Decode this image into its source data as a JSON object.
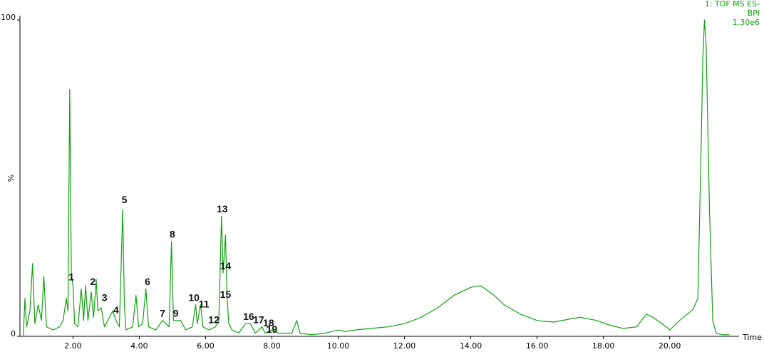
{
  "chart_data": {
    "type": "line",
    "info": [
      "1: TOF MS ES-",
      "BPI",
      "1.30e6"
    ],
    "x_label": "Time",
    "y_label": "%",
    "color": "#12a012",
    "xlim": [
      0.4,
      22.05
    ],
    "ylim": [
      0,
      100
    ],
    "xticks": [
      {
        "value": 2,
        "label": "2.00"
      },
      {
        "value": 4,
        "label": "4.00"
      },
      {
        "value": 6,
        "label": "6.00"
      },
      {
        "value": 8,
        "label": "8.00"
      },
      {
        "value": 10,
        "label": "10.00"
      },
      {
        "value": 12,
        "label": "12.00"
      },
      {
        "value": 14,
        "label": "14.00"
      },
      {
        "value": 16,
        "label": "16.00"
      },
      {
        "value": 18,
        "label": "18.00"
      },
      {
        "value": 20,
        "label": "20.00"
      }
    ],
    "yticks": [
      0,
      100
    ],
    "x": [
      0.5,
      0.55,
      0.6,
      0.7,
      0.78,
      0.85,
      0.95,
      1.05,
      1.12,
      1.2,
      1.4,
      1.6,
      1.7,
      1.8,
      1.85,
      1.9,
      1.95,
      2.0,
      2.05,
      2.15,
      2.25,
      2.32,
      2.38,
      2.45,
      2.55,
      2.62,
      2.7,
      2.75,
      2.85,
      2.95,
      3.1,
      3.2,
      3.3,
      3.4,
      3.5,
      3.55,
      3.6,
      3.8,
      3.9,
      3.98,
      4.1,
      4.2,
      4.28,
      4.5,
      4.7,
      4.8,
      4.9,
      4.97,
      5.03,
      5.1,
      5.25,
      5.4,
      5.6,
      5.7,
      5.75,
      5.85,
      5.92,
      6.1,
      6.3,
      6.4,
      6.48,
      6.53,
      6.6,
      6.65,
      6.7,
      6.8,
      7.0,
      7.2,
      7.35,
      7.5,
      7.7,
      7.8,
      8.0,
      8.2,
      8.6,
      8.75,
      8.85,
      9.2,
      9.6,
      10.0,
      10.2,
      10.5,
      11.0,
      11.5,
      12.0,
      12.5,
      13.0,
      13.5,
      14.0,
      14.3,
      14.7,
      15.0,
      15.5,
      16.0,
      16.5,
      17.0,
      17.3,
      17.8,
      18.2,
      18.6,
      19.0,
      19.3,
      19.5,
      19.9,
      20.0,
      20.3,
      20.7,
      20.85,
      20.95,
      21.0,
      21.05,
      21.1,
      21.2,
      21.3,
      21.4,
      21.6,
      21.8
    ],
    "values": [
      0,
      12,
      3,
      8,
      23,
      4,
      10,
      5,
      19,
      3,
      2,
      3,
      5,
      12,
      8,
      78,
      20,
      16,
      4,
      3,
      15,
      5,
      16,
      5,
      14,
      6,
      18,
      8,
      9,
      3,
      6,
      8,
      5,
      3,
      40,
      10,
      2,
      3,
      13,
      3,
      4,
      15,
      3,
      2,
      5,
      4,
      3,
      30,
      5,
      5,
      5,
      2,
      3,
      10,
      4,
      10,
      3,
      2,
      3,
      5,
      38,
      20,
      32,
      12,
      4,
      2,
      1,
      4,
      4,
      1,
      3,
      1,
      2,
      1,
      1,
      5,
      1,
      0.5,
      1,
      2,
      1.5,
      2,
      2.5,
      3,
      4,
      6,
      9,
      13,
      15.5,
      16,
      13,
      10,
      7,
      5,
      4.5,
      5.5,
      6,
      5,
      3.5,
      2.5,
      3,
      7,
      6,
      3,
      2,
      5,
      8.5,
      12,
      60,
      88,
      100,
      92,
      40,
      5,
      1,
      0.5,
      0.5
    ],
    "annotations": [
      {
        "text": "1",
        "x": 1.95,
        "y": 18.5
      },
      {
        "text": "2",
        "x": 2.6,
        "y": 17
      },
      {
        "text": "3",
        "x": 2.95,
        "y": 12
      },
      {
        "text": "4",
        "x": 3.3,
        "y": 8
      },
      {
        "text": "5",
        "x": 3.55,
        "y": 43
      },
      {
        "text": "6",
        "x": 4.25,
        "y": 17
      },
      {
        "text": "7",
        "x": 4.7,
        "y": 7
      },
      {
        "text": "8",
        "x": 5.0,
        "y": 32
      },
      {
        "text": "9",
        "x": 5.1,
        "y": 7
      },
      {
        "text": "10",
        "x": 5.65,
        "y": 12
      },
      {
        "text": "11",
        "x": 5.95,
        "y": 10
      },
      {
        "text": "12",
        "x": 6.25,
        "y": 5
      },
      {
        "text": "13",
        "x": 6.5,
        "y": 40
      },
      {
        "text": "14",
        "x": 6.6,
        "y": 22
      },
      {
        "text": "15",
        "x": 6.6,
        "y": 13
      },
      {
        "text": "16",
        "x": 7.3,
        "y": 6
      },
      {
        "text": "17",
        "x": 7.6,
        "y": 5
      },
      {
        "text": "18",
        "x": 7.9,
        "y": 4
      },
      {
        "text": "19",
        "x": 8.0,
        "y": 2
      }
    ]
  }
}
